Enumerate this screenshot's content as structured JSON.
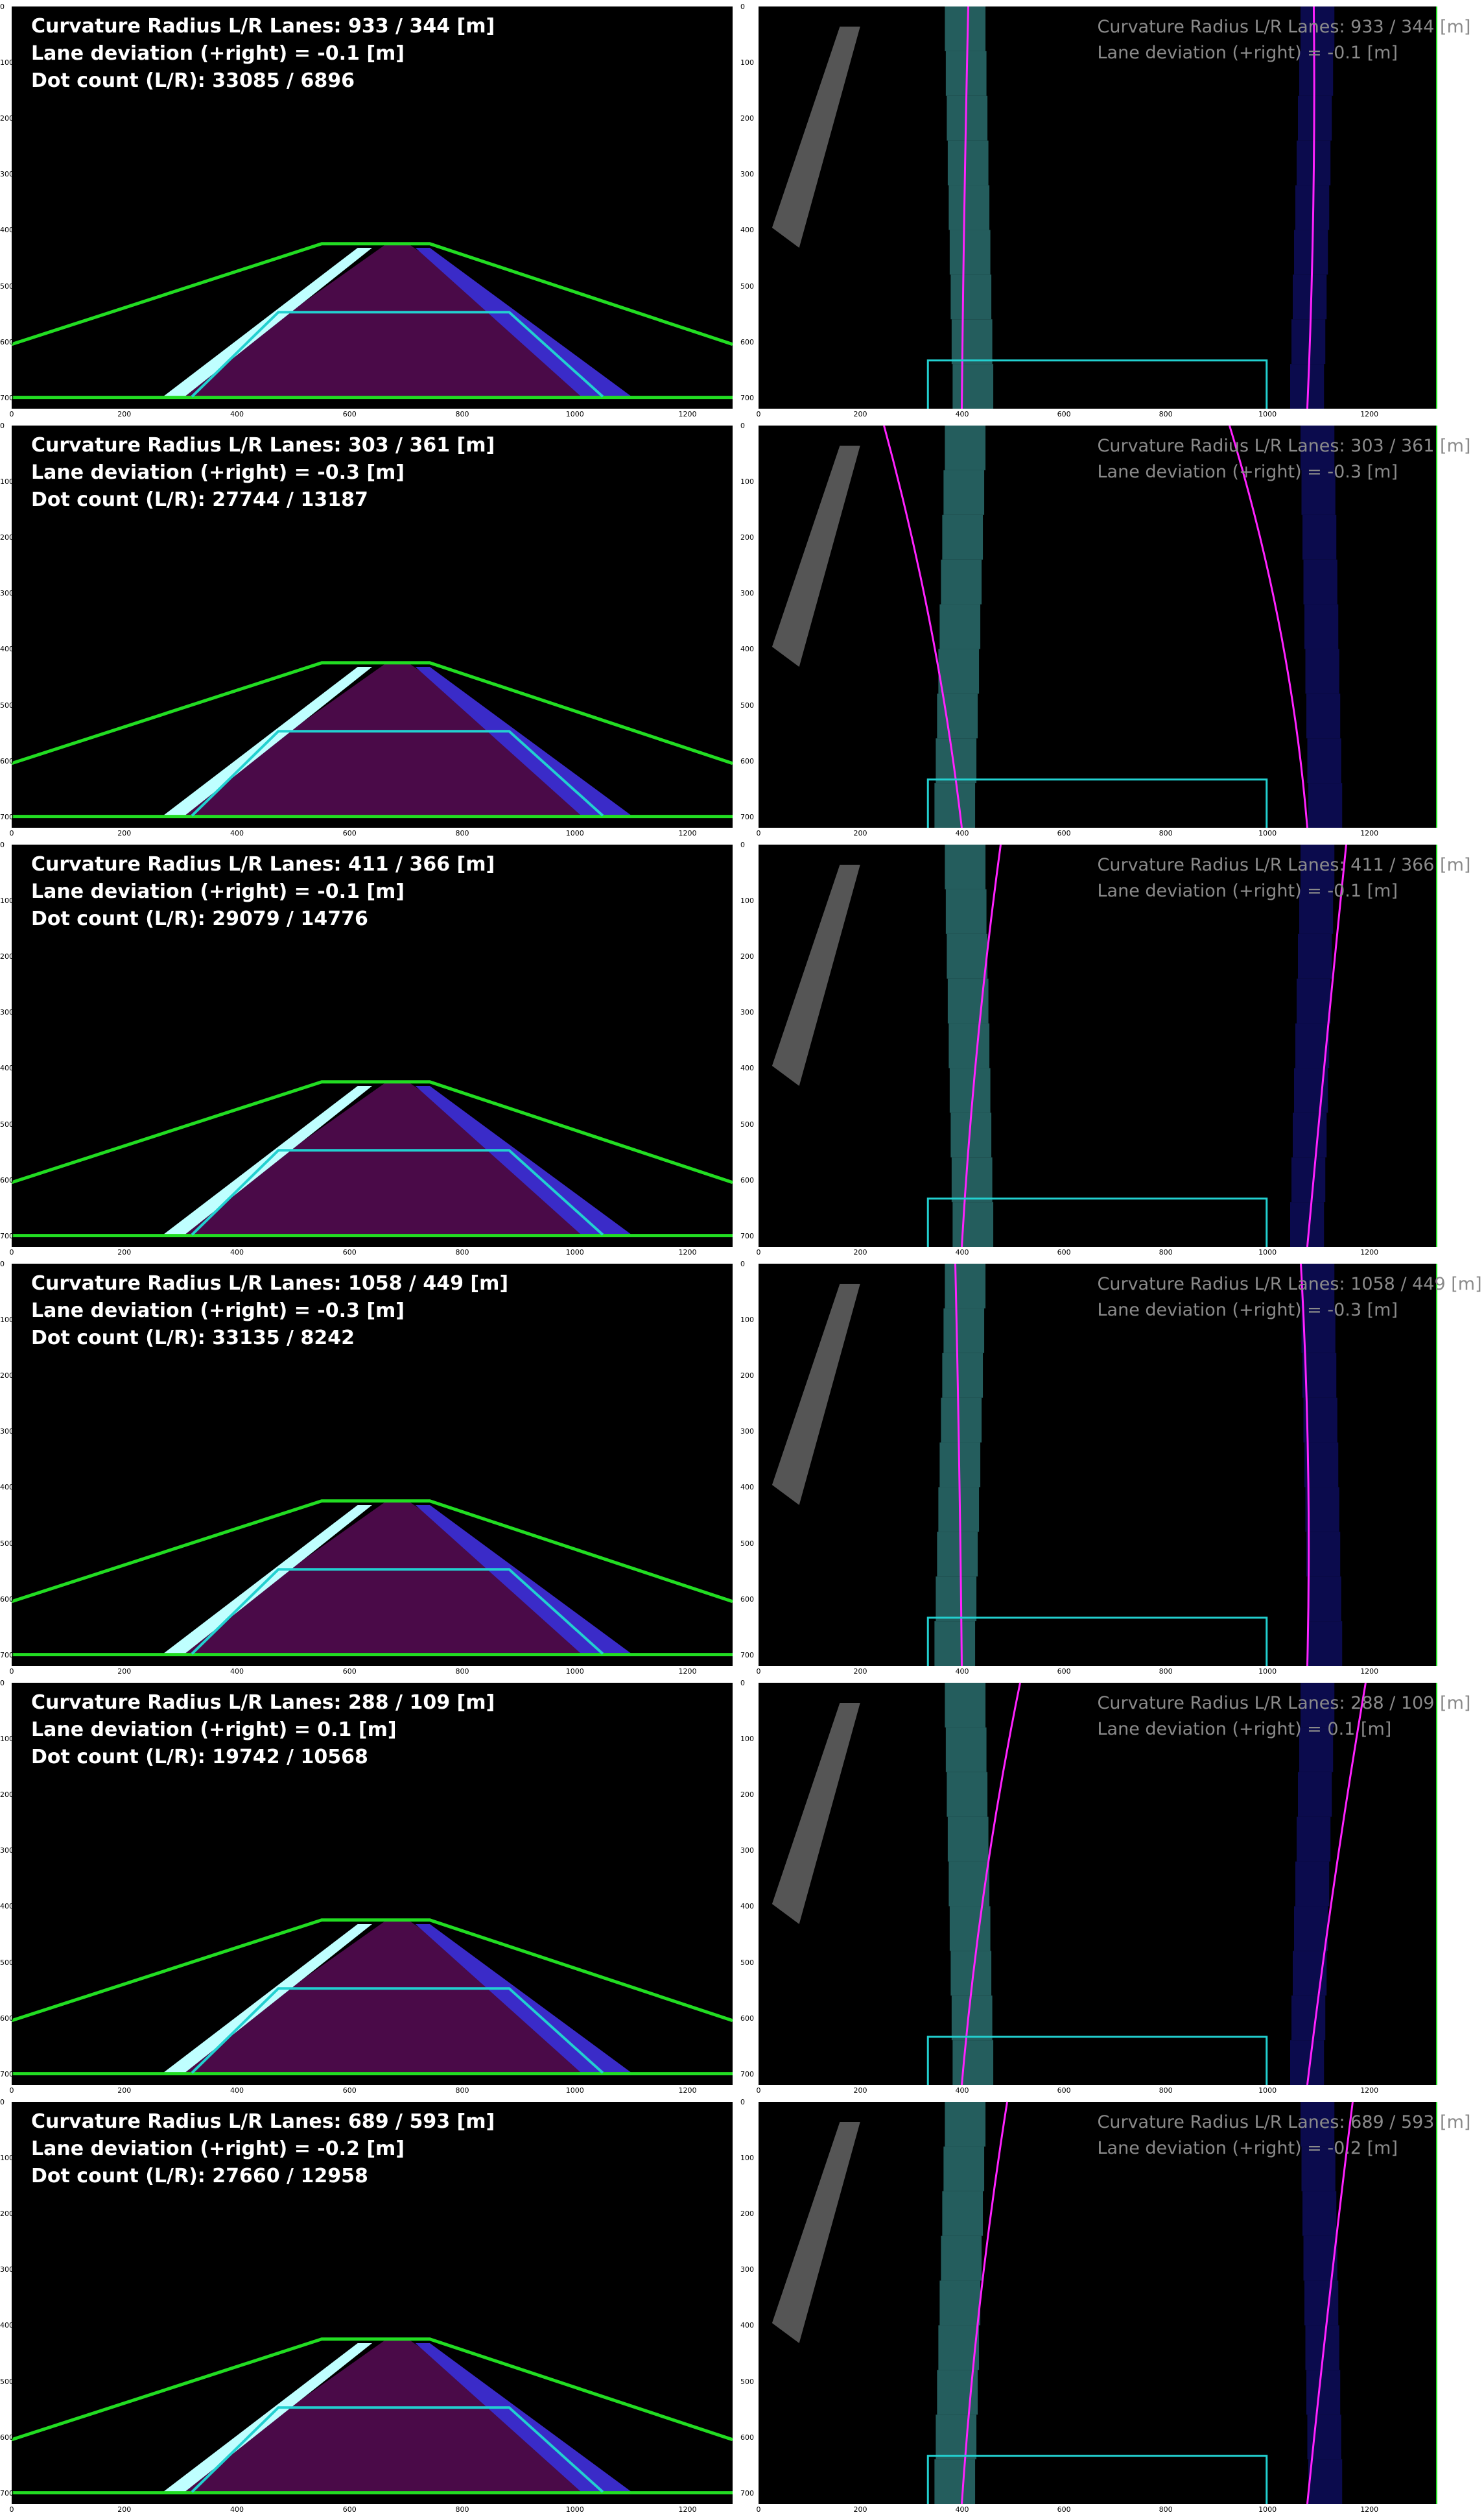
{
  "rows": [
    {
      "curv_label": "Curvature Radius L/R Lanes:",
      "curv_left": "933",
      "curv_right": "344",
      "unit": "[m]",
      "dev_label": "Lane deviation (+right) =",
      "dev_value": "-0.1",
      "dot_label": "Dot count (L/R):",
      "dot_left": "33085",
      "dot_right": "6896",
      "warp_curv": "Curvature Radius L/R Lanes:   933 /   344 [m]",
      "warp_dev": "Lane deviation (+right) = -0.1 [m]"
    },
    {
      "curv_label": "Curvature Radius L/R Lanes:",
      "curv_left": "303",
      "curv_right": "361",
      "unit": "[m]",
      "dev_label": "Lane deviation (+right) =",
      "dev_value": "-0.3",
      "dot_label": "Dot count (L/R):",
      "dot_left": "27744",
      "dot_right": "13187",
      "warp_curv": "Curvature Radius L/R Lanes:   303 /   361 [m]",
      "warp_dev": "Lane deviation (+right) = -0.3 [m]"
    },
    {
      "curv_label": "Curvature Radius L/R Lanes:",
      "curv_left": "411",
      "curv_right": "366",
      "unit": "[m]",
      "dev_label": "Lane deviation (+right) =",
      "dev_value": "-0.1",
      "dot_label": "Dot count (L/R):",
      "dot_left": "29079",
      "dot_right": "14776",
      "warp_curv": "Curvature Radius L/R Lanes:   411 /   366 [m]",
      "warp_dev": "Lane deviation (+right) = -0.1 [m]"
    },
    {
      "curv_label": "Curvature Radius L/R Lanes:",
      "curv_left": "1058",
      "curv_right": "449",
      "unit": "[m]",
      "dev_label": "Lane deviation (+right) =",
      "dev_value": "-0.3",
      "dot_label": "Dot count (L/R):",
      "dot_left": "33135",
      "dot_right": "8242",
      "warp_curv": "Curvature Radius L/R Lanes:  1058 /   449 [m]",
      "warp_dev": "Lane deviation (+right) = -0.3 [m]"
    },
    {
      "curv_label": "Curvature Radius L/R Lanes:",
      "curv_left": "288",
      "curv_right": "109",
      "unit": "[m]",
      "dev_label": "Lane deviation (+right) =",
      "dev_value": " 0.1",
      "dot_label": "Dot count (L/R):",
      "dot_left": "19742",
      "dot_right": "10568",
      "warp_curv": "Curvature Radius L/R Lanes:   288 /   109 [m]",
      "warp_dev": "Lane deviation (+right) =  0.1 [m]"
    },
    {
      "curv_label": "Curvature Radius L/R Lanes:",
      "curv_left": "689",
      "curv_right": "593",
      "unit": "[m]",
      "dev_label": "Lane deviation (+right) =",
      "dev_value": "-0.2",
      "dot_label": "Dot count (L/R):",
      "dot_left": "27660",
      "dot_right": "12958",
      "warp_curv": "Curvature Radius L/R Lanes:   689 /   593 [m]",
      "warp_dev": "Lane deviation (+right) = -0.2 [m]"
    }
  ],
  "x_ticks": [
    "0",
    "200",
    "400",
    "600",
    "800",
    "1000",
    "1200"
  ],
  "y_ticks": [
    "0",
    "100",
    "200",
    "300",
    "400",
    "500",
    "600",
    "700"
  ],
  "colors": {
    "region_green": "#22dd22",
    "inner_cyan": "#22d0d0",
    "road_purple": "#4a0a48",
    "fit_magenta": "#ff22ff"
  }
}
